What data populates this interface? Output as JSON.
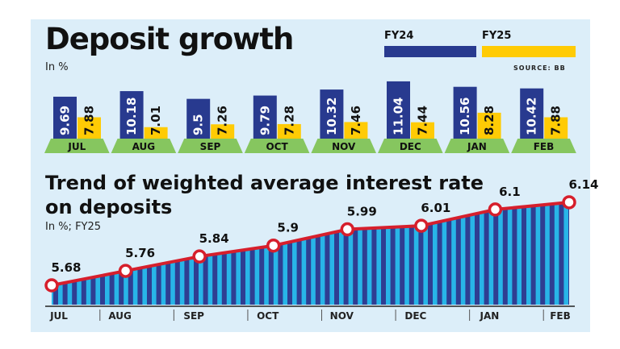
{
  "deposit_growth": {
    "title": "Deposit growth",
    "unit": "In %",
    "source": "SOURCE: BB",
    "legend": [
      {
        "label": "FY24",
        "color": "#283a8f"
      },
      {
        "label": "FY25",
        "color": "#ffcb05"
      }
    ]
  },
  "interest_rate": {
    "title": "Trend of weighted average interest rate on deposits",
    "unit": "In %; FY25"
  },
  "colors": {
    "panel_bg": "#dceef9",
    "fy24": "#283a8f",
    "fy25": "#ffcb05",
    "month_band": "#86c65f",
    "line": "#d61f2c",
    "stripe_light": "#28b5e8",
    "stripe_dark": "#2f3e92"
  },
  "chart_data": [
    {
      "type": "bar",
      "title": "Deposit growth",
      "ylabel": "In %",
      "categories": [
        "JUL",
        "AUG",
        "SEP",
        "OCT",
        "NOV",
        "DEC",
        "JAN",
        "FEB"
      ],
      "series": [
        {
          "name": "FY24",
          "values": [
            9.69,
            10.18,
            9.5,
            9.79,
            10.32,
            11.04,
            10.56,
            10.42
          ]
        },
        {
          "name": "FY25",
          "values": [
            7.88,
            7.01,
            7.26,
            7.28,
            7.46,
            7.44,
            8.28,
            7.88
          ]
        }
      ],
      "value_labels": {
        "FY24": [
          "9.69",
          "10.18",
          "9.5",
          "9.79",
          "10.32",
          "11.04",
          "10.56",
          "10.42"
        ],
        "FY25": [
          "7.88",
          "7.01",
          "7.26",
          "7.28",
          "7.46",
          "7.44",
          "8.28",
          "7.88"
        ]
      },
      "legend": "top-right"
    },
    {
      "type": "area",
      "title": "Trend of weighted average interest rate on deposits",
      "ylabel": "In %; FY25",
      "categories": [
        "JUL",
        "AUG",
        "SEP",
        "OCT",
        "NOV",
        "DEC",
        "JAN",
        "FEB"
      ],
      "values": [
        5.68,
        5.76,
        5.84,
        5.9,
        5.99,
        6.01,
        6.1,
        6.14
      ],
      "value_labels": [
        "5.68",
        "5.76",
        "5.84",
        "5.9",
        "5.99",
        "6.01",
        "6.1",
        "6.14"
      ]
    }
  ]
}
